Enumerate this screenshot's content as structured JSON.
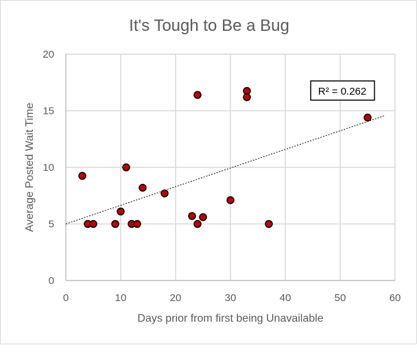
{
  "chart_data": {
    "type": "scatter",
    "title": "It's Tough to Be a Bug",
    "xlabel": "Days prior from first being Unavailable",
    "ylabel": "Average Posted Wait Time",
    "xlim": [
      0,
      60
    ],
    "ylim": [
      0,
      20
    ],
    "x_ticks": [
      "0",
      "10",
      "20",
      "30",
      "40",
      "50",
      "60"
    ],
    "y_ticks": [
      "0",
      "5",
      "10",
      "15",
      "20"
    ],
    "grid": true,
    "legend": "none",
    "marker_color": "#c00000",
    "marker_edge_color": "#000000",
    "series": [
      {
        "points": [
          {
            "x": 3,
            "y": 9.25
          },
          {
            "x": 4,
            "y": 5
          },
          {
            "x": 5,
            "y": 5
          },
          {
            "x": 9,
            "y": 5
          },
          {
            "x": 10,
            "y": 6.1
          },
          {
            "x": 11,
            "y": 10
          },
          {
            "x": 12,
            "y": 5
          },
          {
            "x": 13,
            "y": 5
          },
          {
            "x": 14,
            "y": 8.2
          },
          {
            "x": 18,
            "y": 7.7
          },
          {
            "x": 23,
            "y": 5.7
          },
          {
            "x": 24,
            "y": 5
          },
          {
            "x": 24,
            "y": 16.4
          },
          {
            "x": 25,
            "y": 5.6
          },
          {
            "x": 30,
            "y": 7.1
          },
          {
            "x": 33,
            "y": 16.75
          },
          {
            "x": 33,
            "y": 16.2
          },
          {
            "x": 37,
            "y": 5
          },
          {
            "x": 55,
            "y": 14.4
          }
        ]
      }
    ],
    "trendline": {
      "type": "linear",
      "x_start": 0,
      "y_start": 5.0,
      "x_end": 58,
      "y_end": 14.55
    },
    "annotation": "R² = 0.262"
  }
}
